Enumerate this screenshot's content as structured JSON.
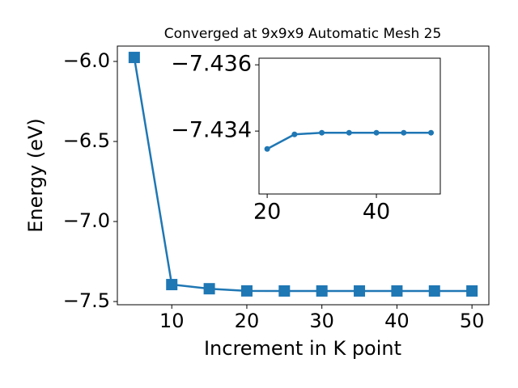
{
  "chart_data": [
    {
      "type": "line",
      "title": "Converged at 9x9x9 Automatic Mesh 25",
      "x_label": "Increment in K point",
      "y_label": "Energy (eV)",
      "x": [
        5,
        10,
        15,
        20,
        25,
        30,
        35,
        40,
        45,
        50
      ],
      "series": [
        {
          "color": "#1f77b4",
          "marker": "square",
          "values": [
            -5.975,
            -7.394,
            -7.42,
            -7.4335,
            -7.4339,
            -7.4339,
            -7.4339,
            -7.4339,
            -7.4339,
            -7.4339
          ]
        }
      ],
      "xlim": [
        2.75,
        52.25
      ],
      "ylim": [
        -7.52,
        -5.904
      ],
      "xticks": [
        10,
        20,
        30,
        40,
        50
      ],
      "yticks": [
        {
          "value": -6.0,
          "label": "−6.0"
        },
        {
          "value": -6.5,
          "label": "−6.5"
        },
        {
          "value": -7.0,
          "label": "−7.0"
        },
        {
          "value": -7.5,
          "label": "−7.5"
        }
      ]
    },
    {
      "type": "line",
      "x": [
        20,
        25,
        30,
        35,
        40,
        45,
        50
      ],
      "series": [
        {
          "color": "#1f77b4",
          "marker": "circle",
          "values": [
            -7.43346,
            -7.4339,
            -7.43395,
            -7.43395,
            -7.43395,
            -7.43395,
            -7.43395
          ]
        }
      ],
      "xlim": [
        18.5,
        51.7
      ],
      "ylim": [
        -7.4321,
        -7.4362
      ],
      "xticks": [
        20,
        40
      ],
      "yticks": [
        {
          "value": -7.436,
          "label": "−7.436"
        },
        {
          "value": -7.434,
          "label": "−7.434"
        }
      ]
    }
  ]
}
